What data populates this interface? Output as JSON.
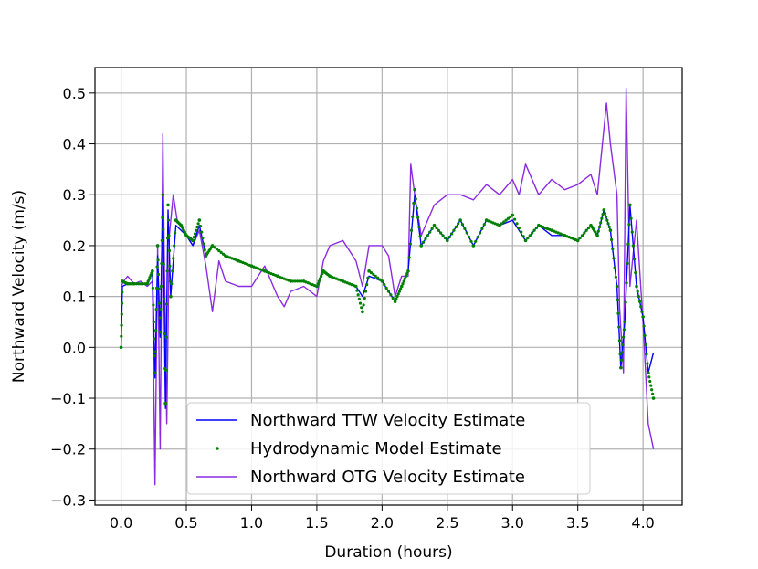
{
  "chart_data": {
    "type": "line",
    "xlabel": "Duration (hours)",
    "ylabel": "Northward Velocity (m/s)",
    "xlim": [
      -0.2,
      4.3
    ],
    "ylim": [
      -0.31,
      0.55
    ],
    "xticks": [
      0.0,
      0.5,
      1.0,
      1.5,
      2.0,
      2.5,
      3.0,
      3.5,
      4.0
    ],
    "xtick_labels": [
      "0.0",
      "0.5",
      "1.0",
      "1.5",
      "2.0",
      "2.5",
      "3.0",
      "3.5",
      "4.0"
    ],
    "yticks": [
      -0.3,
      -0.2,
      -0.1,
      0.0,
      0.1,
      0.2,
      0.3,
      0.4,
      0.5
    ],
    "ytick_labels": [
      "−0.3",
      "−0.2",
      "−0.1",
      "0.0",
      "0.1",
      "0.2",
      "0.3",
      "0.4",
      "0.5"
    ],
    "grid": true,
    "legend_position": "bottom-center",
    "series": [
      {
        "name": "Northward TTW Velocity Estimate",
        "color": "#0000ff",
        "style": "line",
        "x": [
          0.0,
          0.01,
          0.05,
          0.1,
          0.2,
          0.24,
          0.26,
          0.28,
          0.3,
          0.32,
          0.34,
          0.36,
          0.38,
          0.42,
          0.46,
          0.5,
          0.55,
          0.6,
          0.65,
          0.7,
          0.8,
          0.9,
          1.0,
          1.1,
          1.2,
          1.3,
          1.4,
          1.5,
          1.55,
          1.6,
          1.7,
          1.8,
          1.85,
          1.9,
          2.0,
          2.1,
          2.15,
          2.2,
          2.25,
          2.3,
          2.4,
          2.5,
          2.6,
          2.7,
          2.8,
          2.9,
          3.0,
          3.1,
          3.2,
          3.3,
          3.4,
          3.5,
          3.6,
          3.65,
          3.7,
          3.75,
          3.8,
          3.83,
          3.86,
          3.9,
          3.95,
          4.0,
          4.04,
          4.08
        ],
        "y": [
          0.0,
          0.12,
          0.125,
          0.125,
          0.125,
          0.15,
          -0.06,
          0.18,
          0.02,
          0.3,
          -0.12,
          0.27,
          0.1,
          0.24,
          0.23,
          0.22,
          0.2,
          0.24,
          0.18,
          0.2,
          0.18,
          0.17,
          0.16,
          0.15,
          0.14,
          0.13,
          0.13,
          0.12,
          0.15,
          0.14,
          0.13,
          0.12,
          0.1,
          0.14,
          0.13,
          0.09,
          0.12,
          0.15,
          0.3,
          0.2,
          0.24,
          0.21,
          0.25,
          0.2,
          0.25,
          0.24,
          0.25,
          0.21,
          0.24,
          0.22,
          0.22,
          0.21,
          0.24,
          0.22,
          0.27,
          0.23,
          0.12,
          -0.04,
          0.05,
          0.28,
          0.12,
          0.06,
          -0.05,
          -0.01
        ]
      },
      {
        "name": "Hydrodynamic Model Estimate",
        "color": "#008000",
        "style": "dots",
        "x": [
          0.0,
          0.01,
          0.05,
          0.1,
          0.2,
          0.24,
          0.26,
          0.28,
          0.3,
          0.32,
          0.34,
          0.36,
          0.38,
          0.42,
          0.46,
          0.5,
          0.55,
          0.6,
          0.65,
          0.7,
          0.8,
          0.9,
          1.0,
          1.1,
          1.2,
          1.3,
          1.4,
          1.5,
          1.55,
          1.6,
          1.7,
          1.8,
          1.85,
          1.9,
          2.0,
          2.1,
          2.15,
          2.2,
          2.25,
          2.3,
          2.4,
          2.5,
          2.6,
          2.7,
          2.8,
          2.9,
          3.0,
          3.1,
          3.2,
          3.3,
          3.4,
          3.5,
          3.6,
          3.65,
          3.7,
          3.75,
          3.8,
          3.83,
          3.86,
          3.9,
          3.95,
          4.0,
          4.04,
          4.08
        ],
        "y": [
          0.0,
          0.13,
          0.125,
          0.125,
          0.125,
          0.15,
          -0.05,
          0.2,
          0.03,
          0.3,
          -0.11,
          0.28,
          0.1,
          0.25,
          0.24,
          0.22,
          0.21,
          0.25,
          0.18,
          0.2,
          0.18,
          0.17,
          0.16,
          0.15,
          0.14,
          0.13,
          0.13,
          0.12,
          0.15,
          0.14,
          0.13,
          0.12,
          0.07,
          0.15,
          0.13,
          0.09,
          0.12,
          0.15,
          0.31,
          0.2,
          0.24,
          0.21,
          0.25,
          0.2,
          0.25,
          0.24,
          0.26,
          0.21,
          0.24,
          0.23,
          0.22,
          0.21,
          0.24,
          0.22,
          0.27,
          0.23,
          0.12,
          -0.04,
          0.05,
          0.28,
          0.12,
          0.06,
          -0.05,
          -0.1
        ]
      },
      {
        "name": "Northward OTG Velocity Estimate",
        "color": "#8a2be2",
        "style": "line",
        "x": [
          0.0,
          0.02,
          0.05,
          0.1,
          0.15,
          0.2,
          0.24,
          0.26,
          0.28,
          0.3,
          0.32,
          0.33,
          0.35,
          0.37,
          0.4,
          0.43,
          0.46,
          0.5,
          0.55,
          0.6,
          0.65,
          0.7,
          0.75,
          0.8,
          0.9,
          1.0,
          1.1,
          1.2,
          1.25,
          1.3,
          1.4,
          1.5,
          1.55,
          1.6,
          1.7,
          1.8,
          1.85,
          1.9,
          2.0,
          2.05,
          2.1,
          2.15,
          2.2,
          2.22,
          2.25,
          2.3,
          2.4,
          2.5,
          2.6,
          2.7,
          2.8,
          2.9,
          3.0,
          3.05,
          3.1,
          3.2,
          3.3,
          3.4,
          3.5,
          3.6,
          3.65,
          3.7,
          3.72,
          3.75,
          3.8,
          3.82,
          3.85,
          3.87,
          3.9,
          3.95,
          4.0,
          4.04,
          4.08
        ],
        "y": [
          0.12,
          0.13,
          0.14,
          0.125,
          0.13,
          0.12,
          0.13,
          -0.27,
          0.2,
          -0.2,
          0.42,
          0.2,
          -0.15,
          0.22,
          0.3,
          0.25,
          0.24,
          0.22,
          0.2,
          0.23,
          0.16,
          0.07,
          0.17,
          0.13,
          0.12,
          0.12,
          0.16,
          0.1,
          0.08,
          0.11,
          0.12,
          0.1,
          0.17,
          0.2,
          0.21,
          0.17,
          0.12,
          0.2,
          0.2,
          0.18,
          0.1,
          0.14,
          0.14,
          0.36,
          0.3,
          0.22,
          0.28,
          0.3,
          0.3,
          0.29,
          0.32,
          0.3,
          0.33,
          0.3,
          0.36,
          0.3,
          0.33,
          0.31,
          0.32,
          0.34,
          0.3,
          0.43,
          0.48,
          0.4,
          0.3,
          0.08,
          -0.05,
          0.51,
          0.12,
          0.25,
          0.05,
          -0.15,
          -0.2
        ]
      }
    ]
  }
}
